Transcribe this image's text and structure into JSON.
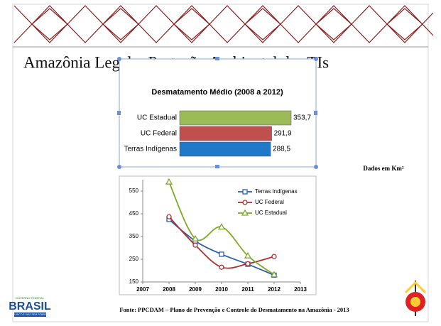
{
  "slide": {
    "title": "Amazônia Legal – Proteção Ambiental das TIs",
    "note": "Dados em Km²",
    "source": "Fonte: PPCDAM – Plano de Prevenção e Controle do Desmatamento na Amazônia - 2013",
    "logo": {
      "top": "GOVERNO FEDERAL",
      "name": "BRASIL",
      "motto": "PAÍS RICO É PAÍS SEM POBREZA"
    }
  },
  "chart_data": [
    {
      "type": "hbar",
      "title": "Desmatamento Médio (2008 a 2012)",
      "categories": [
        "UC Estadual",
        "UC Federal",
        "Terras Indígenas"
      ],
      "values": [
        353.7,
        291.9,
        288.5
      ],
      "value_labels": [
        "353,7",
        "291,9",
        "288,5"
      ],
      "colors": [
        "#9bbb59",
        "#c0504d",
        "#1f78c8"
      ]
    },
    {
      "type": "line",
      "x": [
        2008,
        2009,
        2010,
        2011,
        2012
      ],
      "xlim": [
        2007,
        2013
      ],
      "xticks": [
        2007,
        2008,
        2009,
        2010,
        2011,
        2012,
        2013
      ],
      "ylim": [
        150,
        600
      ],
      "yticks": [
        150,
        250,
        350,
        450,
        550
      ],
      "legend": "upper right",
      "series": [
        {
          "name": "Terras Indígenas",
          "color": "#2e5fa8",
          "marker": "square",
          "values": [
            425,
            330,
            272,
            228,
            180
          ]
        },
        {
          "name": "UC Federal",
          "color": "#b03030",
          "marker": "circle",
          "values": [
            437,
            312,
            215,
            230,
            262
          ]
        },
        {
          "name": "UC Estadual",
          "color": "#7faa2c",
          "marker": "triangle",
          "values": [
            590,
            340,
            392,
            265,
            182
          ]
        }
      ]
    }
  ]
}
